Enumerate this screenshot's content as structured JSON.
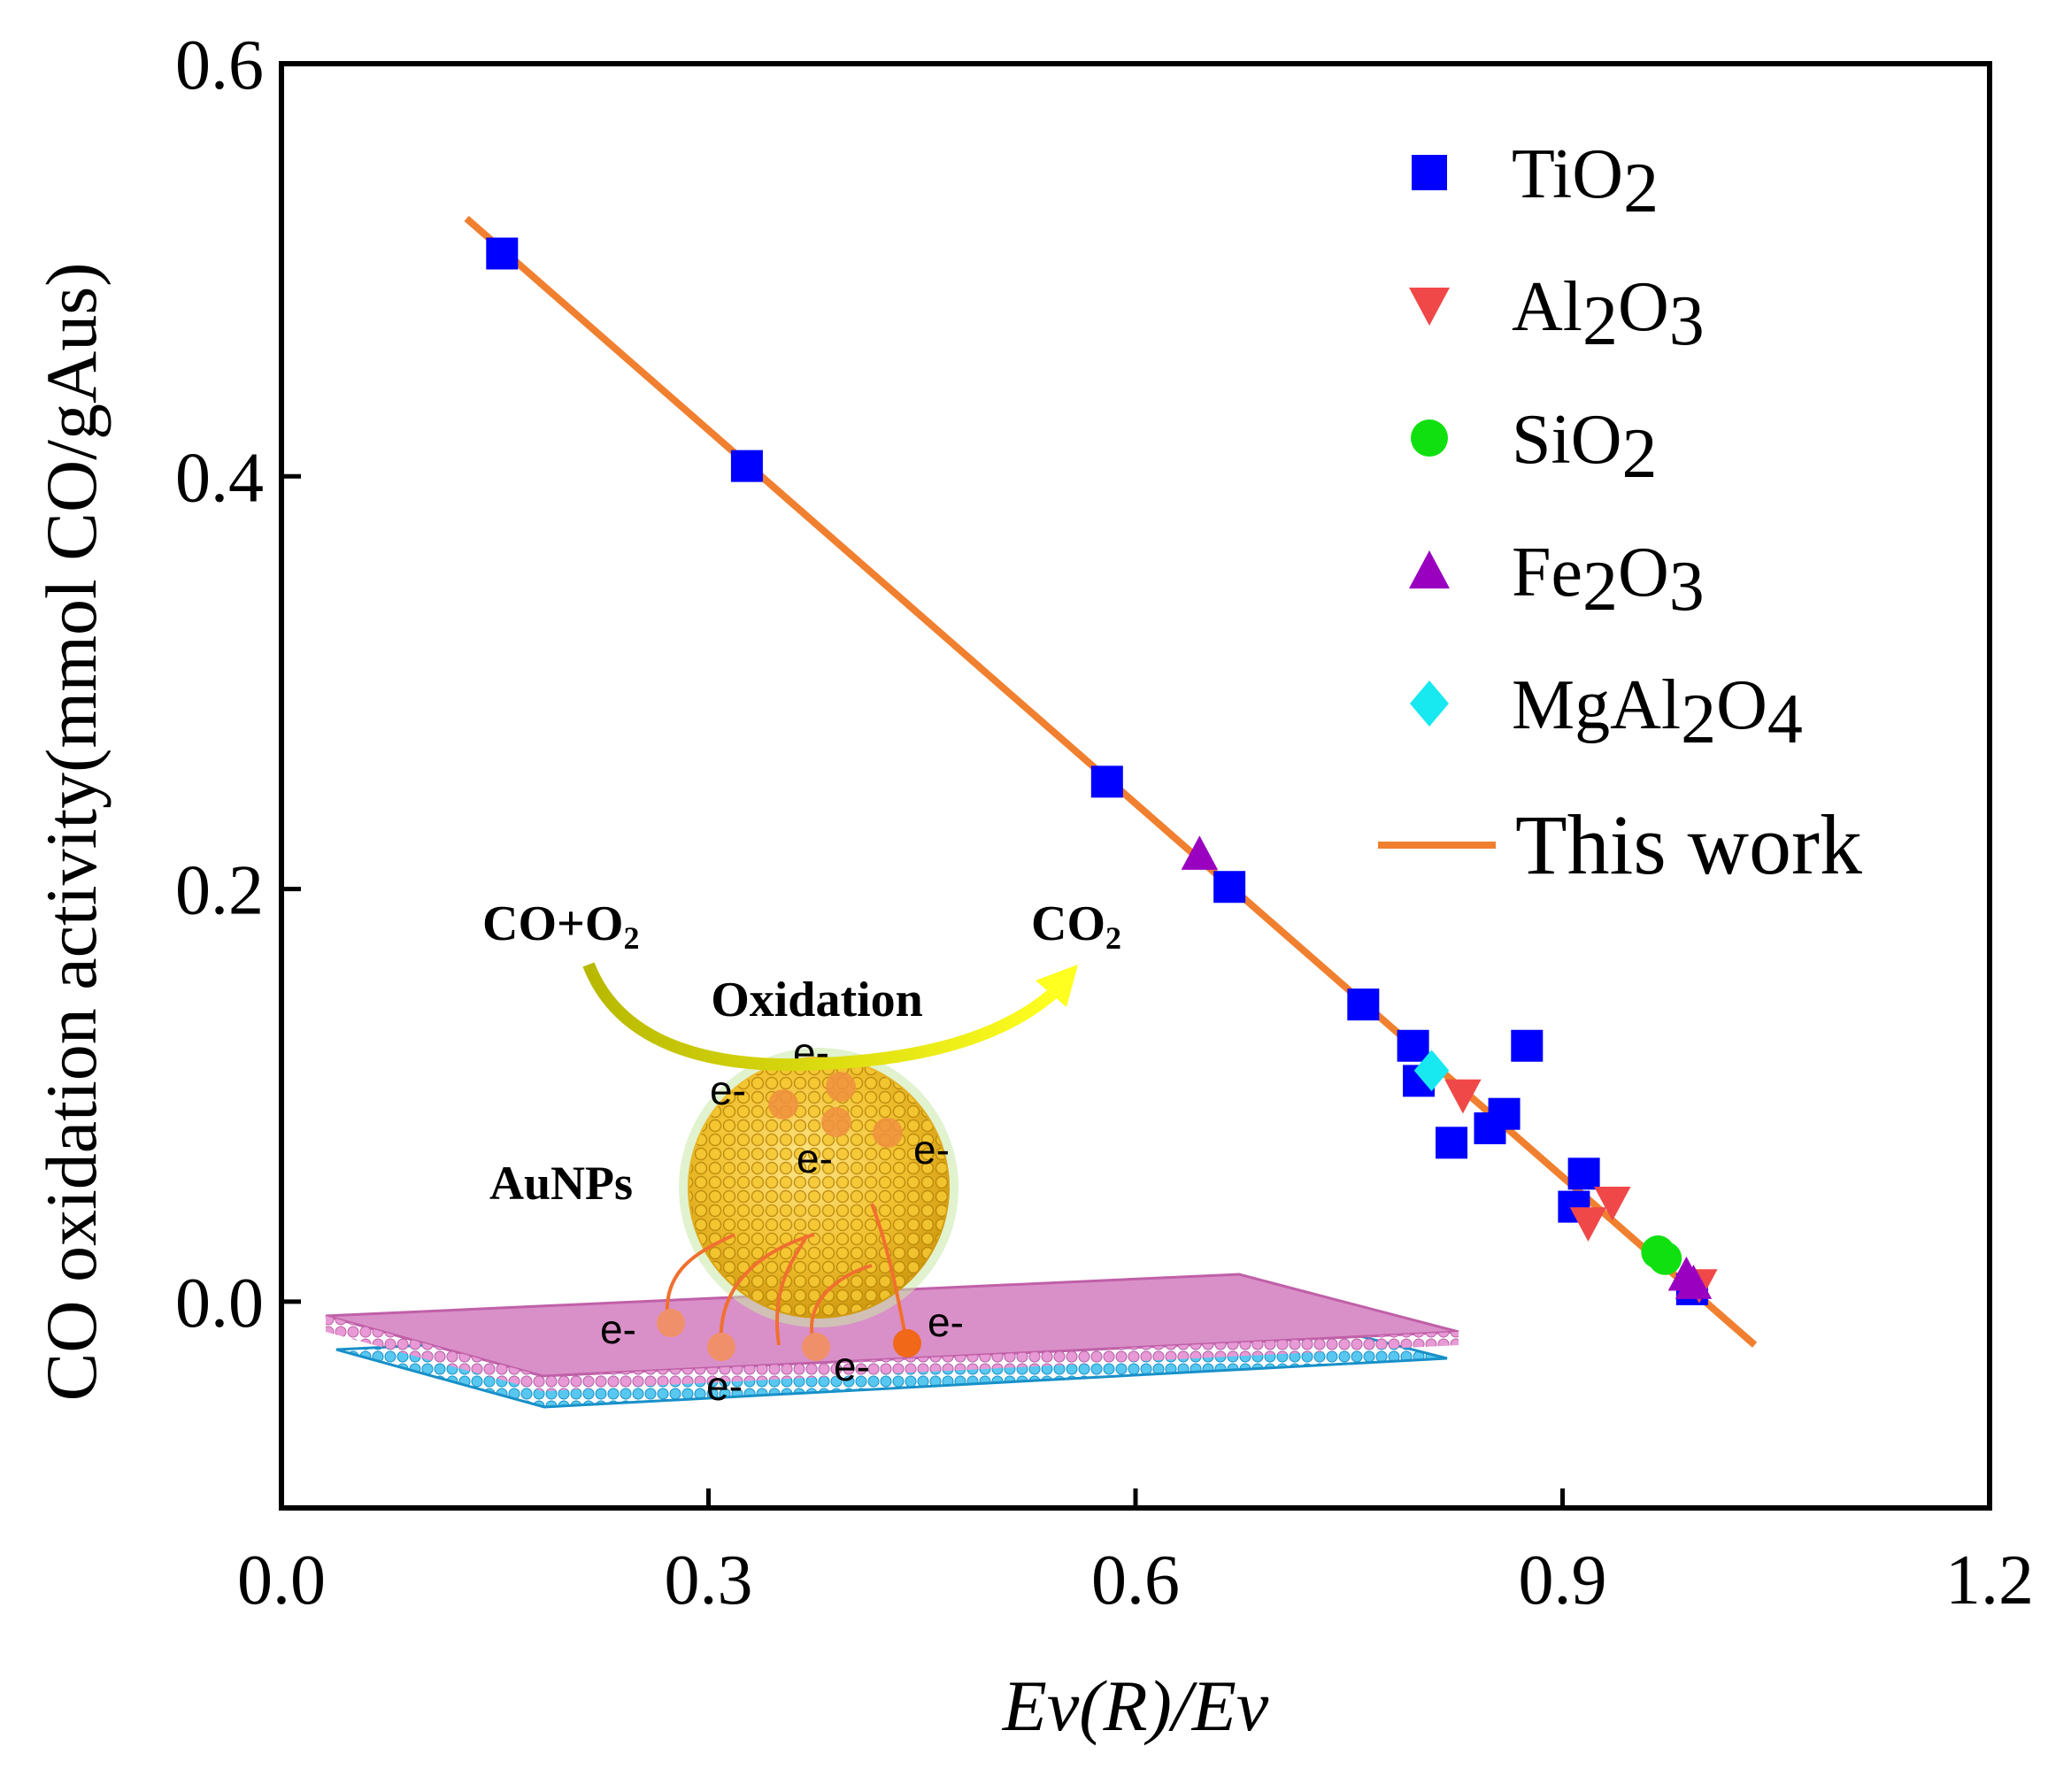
{
  "chart_data": {
    "type": "scatter",
    "title": "",
    "xlabel": "Ev(R)/Ev",
    "ylabel": "CO oxidation activity(mmol CO/gAus)",
    "xlim": [
      0.0,
      1.2
    ],
    "ylim": [
      -0.1,
      0.6
    ],
    "xticks": [
      "0.0",
      "0.3",
      "0.6",
      "0.9",
      "1.2"
    ],
    "yticks": [
      "0.0",
      "0.2",
      "0.4",
      "0.6"
    ],
    "xtick_values": [
      0.0,
      0.3,
      0.6,
      0.9,
      1.2
    ],
    "ytick_values": [
      0.0,
      0.2,
      0.4,
      0.6
    ],
    "grid": false,
    "legend_position": "top-right",
    "series": [
      {
        "name": "TiO2",
        "label_main": "TiO",
        "label_sub": "2",
        "marker": "square",
        "color": "#0000ff",
        "x": [
          0.155,
          0.327,
          0.58,
          0.666,
          0.76,
          0.795,
          0.799,
          0.822,
          0.849,
          0.859,
          0.875,
          0.908,
          0.915,
          0.991
        ],
        "y": [
          0.508,
          0.405,
          0.252,
          0.201,
          0.144,
          0.124,
          0.107,
          0.077,
          0.084,
          0.091,
          0.124,
          0.046,
          0.062,
          0.006
        ]
      },
      {
        "name": "Al2O3",
        "label_main": "Al",
        "label_sub": "2",
        "label_main2": "O",
        "label_sub2": "3",
        "marker": "triangle-down",
        "color": "#f04848",
        "x": [
          0.83,
          0.918,
          0.935,
          0.996
        ],
        "y": [
          0.1,
          0.038,
          0.048,
          0.008
        ]
      },
      {
        "name": "SiO2",
        "label_main": "SiO",
        "label_sub": "2",
        "marker": "circle",
        "color": "#10e010",
        "x": [
          0.967,
          0.972
        ],
        "y": [
          0.024,
          0.021
        ]
      },
      {
        "name": "Fe2O3",
        "label_main": "Fe",
        "label_sub": "2",
        "label_main2": "O",
        "label_sub2": "3",
        "marker": "triangle-up",
        "color": "#9a00c0",
        "x": [
          0.645,
          0.987,
          0.992
        ],
        "y": [
          0.217,
          0.013,
          0.009
        ]
      },
      {
        "name": "MgAl2O4",
        "label_main": "MgAl",
        "label_sub": "2",
        "label_main2": "O",
        "label_sub2": "4",
        "marker": "diamond",
        "color": "#18e8f0",
        "x": [
          0.808
        ],
        "y": [
          0.112
        ]
      }
    ],
    "fit_line": {
      "name": "This work",
      "color": "#f08030",
      "x": [
        0.13,
        1.035
      ],
      "y": [
        0.525,
        -0.021
      ]
    }
  },
  "inset": {
    "reactant_main": "CO+O",
    "reactant_sub": "2",
    "product_main": "CO",
    "product_sub": "2",
    "process_label": "Oxidation",
    "particle_label": "AuNPs",
    "electron_label": "e-"
  },
  "colors": {
    "gold": "#f2c230",
    "gold_dark": "#b8860b",
    "pink_sheet": "#dc88c8",
    "blue_sheet": "#3cb8e8",
    "arrow_orange": "#f07030"
  }
}
